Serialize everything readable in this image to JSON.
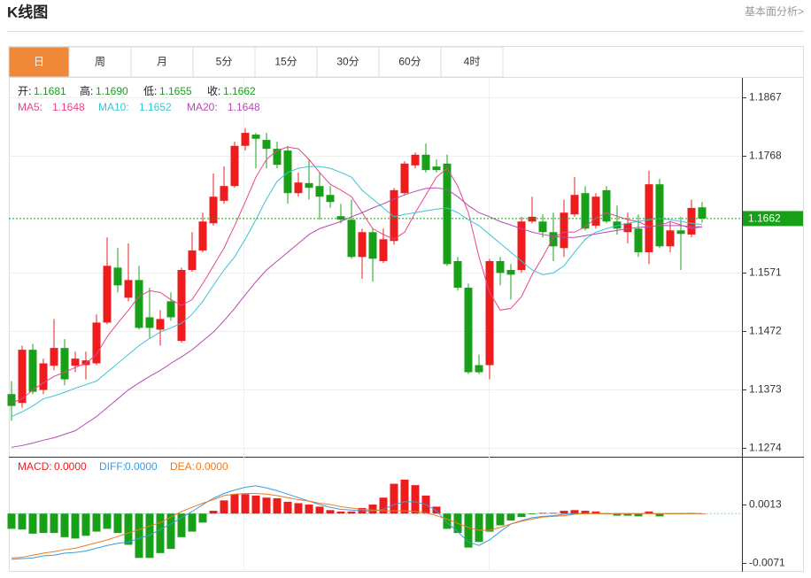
{
  "header": {
    "title": "K线图",
    "link": "基本面分析>"
  },
  "tabs": {
    "items": [
      "日",
      "周",
      "月",
      "5分",
      "15分",
      "30分",
      "60分",
      "4时"
    ],
    "active": 0
  },
  "chart_data": [
    {
      "type": "candlestick",
      "up_color": "#ee1c1c",
      "down_color": "#18a118",
      "ylim": [
        1.1259,
        1.19
      ],
      "yticks": [
        1.1274,
        1.1373,
        1.1472,
        1.1571,
        1.1768,
        1.1867
      ],
      "grid": true,
      "last_price": 1.1662,
      "last_price_color": "#18a118",
      "ohlc_legend": [
        {
          "label": "开:",
          "value": 1.1681
        },
        {
          "label": "高:",
          "value": 1.169,
          "value_label": "1.1690"
        },
        {
          "label": "低:",
          "value": 1.1655
        },
        {
          "label": "收:",
          "value": 1.1662
        }
      ],
      "open": [
        1.1365,
        1.135,
        1.144,
        1.1372,
        1.1413,
        1.1443,
        1.1413,
        1.1414,
        1.1417,
        1.1486,
        1.1579,
        1.1528,
        1.1558,
        1.1495,
        1.1474,
        1.1522,
        1.1455,
        1.1575,
        1.1608,
        1.1654,
        1.1692,
        1.1717,
        1.1785,
        1.1804,
        1.1795,
        1.178,
        1.1777,
        1.1705,
        1.1722,
        1.1717,
        1.1702,
        1.1666,
        1.166,
        1.1597,
        1.1639,
        1.159,
        1.1624,
        1.1705,
        1.1752,
        1.177,
        1.175,
        1.1755,
        1.159,
        1.1545,
        1.1414,
        1.1414,
        1.159,
        1.1575,
        1.1575,
        1.1657,
        1.1657,
        1.1639,
        1.1612,
        1.1669,
        1.1705,
        1.165,
        1.171,
        1.1657,
        1.1639,
        1.1645,
        1.1605,
        1.172,
        1.1615,
        1.1642,
        1.1635,
        1.1681
      ],
      "high": [
        1.1387,
        1.1447,
        1.145,
        1.1425,
        1.1492,
        1.1458,
        1.1437,
        1.1437,
        1.15,
        1.163,
        1.1612,
        1.162,
        1.1582,
        1.1545,
        1.1507,
        1.1537,
        1.1579,
        1.1639,
        1.1672,
        1.1738,
        1.175,
        1.1792,
        1.1815,
        1.1807,
        1.1807,
        1.1792,
        1.1785,
        1.174,
        1.1762,
        1.174,
        1.1717,
        1.1687,
        1.1694,
        1.1645,
        1.1645,
        1.1645,
        1.1714,
        1.1759,
        1.1774,
        1.1789,
        1.1762,
        1.177,
        1.1597,
        1.1552,
        1.1432,
        1.1594,
        1.1597,
        1.1585,
        1.1665,
        1.1699,
        1.1669,
        1.1672,
        1.1694,
        1.1732,
        1.1717,
        1.1705,
        1.1717,
        1.1684,
        1.1672,
        1.1669,
        1.1743,
        1.1729,
        1.1657,
        1.1665,
        1.1694,
        1.169
      ],
      "low": [
        1.132,
        1.1342,
        1.1365,
        1.1365,
        1.1405,
        1.138,
        1.1402,
        1.139,
        1.1414,
        1.1483,
        1.1537,
        1.1522,
        1.1474,
        1.1459,
        1.1447,
        1.1489,
        1.1452,
        1.1572,
        1.1605,
        1.165,
        1.1687,
        1.1714,
        1.1777,
        1.1747,
        1.1747,
        1.1747,
        1.1687,
        1.1699,
        1.1694,
        1.166,
        1.168,
        1.1654,
        1.1594,
        1.156,
        1.1555,
        1.1587,
        1.1618,
        1.1702,
        1.1747,
        1.174,
        1.174,
        1.1582,
        1.154,
        1.1399,
        1.1399,
        1.139,
        1.1549,
        1.1525,
        1.157,
        1.1654,
        1.163,
        1.159,
        1.1597,
        1.1665,
        1.1642,
        1.1645,
        1.1654,
        1.1635,
        1.162,
        1.1597,
        1.1585,
        1.1612,
        1.1605,
        1.1575,
        1.163,
        1.1655
      ],
      "close": [
        1.1345,
        1.144,
        1.1369,
        1.1417,
        1.1443,
        1.139,
        1.1425,
        1.1422,
        1.1486,
        1.1582,
        1.1549,
        1.1558,
        1.1477,
        1.1477,
        1.1492,
        1.1495,
        1.1575,
        1.1608,
        1.1657,
        1.1699,
        1.1717,
        1.1785,
        1.1807,
        1.1797,
        1.178,
        1.1753,
        1.1705,
        1.1723,
        1.1714,
        1.1699,
        1.169,
        1.166,
        1.1597,
        1.1639,
        1.1594,
        1.1627,
        1.171,
        1.1755,
        1.177,
        1.1744,
        1.1744,
        1.1585,
        1.1545,
        1.1402,
        1.1402,
        1.159,
        1.157,
        1.1567,
        1.1657,
        1.1665,
        1.1639,
        1.1615,
        1.1672,
        1.1702,
        1.1645,
        1.1699,
        1.1657,
        1.1645,
        1.1654,
        1.1605,
        1.172,
        1.1615,
        1.1642,
        1.1636,
        1.168,
        1.1662
      ],
      "series": [
        {
          "name": "MA5:",
          "color": "#e8458b",
          "values": [
            1.135,
            1.1357,
            1.1372,
            1.1384,
            1.1395,
            1.1402,
            1.141,
            1.1417,
            1.1432,
            1.1462,
            1.1485,
            1.1507,
            1.153,
            1.154,
            1.1537,
            1.1525,
            1.1515,
            1.1525,
            1.1552,
            1.1582,
            1.1612,
            1.165,
            1.169,
            1.1732,
            1.1762,
            1.1777,
            1.1783,
            1.178,
            1.1762,
            1.174,
            1.172,
            1.171,
            1.1699,
            1.1672,
            1.1645,
            1.1635,
            1.1627,
            1.1639,
            1.1672,
            1.1702,
            1.1732,
            1.1747,
            1.1717,
            1.1672,
            1.1597,
            1.1537,
            1.1507,
            1.151,
            1.153,
            1.1567,
            1.1597,
            1.163,
            1.1639,
            1.1639,
            1.1648,
            1.1663,
            1.1672,
            1.1666,
            1.166,
            1.1657,
            1.1648,
            1.165,
            1.1657,
            1.1651,
            1.1645,
            1.1648
          ]
        },
        {
          "name": "MA10:",
          "color": "#3cc3d6",
          "values": [
            1.1327,
            1.1335,
            1.1345,
            1.1357,
            1.1362,
            1.1368,
            1.1375,
            1.1381,
            1.1387,
            1.1402,
            1.1417,
            1.1432,
            1.1447,
            1.1459,
            1.147,
            1.1477,
            1.1485,
            1.15,
            1.1522,
            1.1549,
            1.1575,
            1.1597,
            1.1627,
            1.166,
            1.1695,
            1.1725,
            1.174,
            1.1747,
            1.175,
            1.175,
            1.1747,
            1.174,
            1.1732,
            1.171,
            1.1695,
            1.168,
            1.1665,
            1.1669,
            1.1672,
            1.1675,
            1.1678,
            1.168,
            1.1672,
            1.166,
            1.165,
            1.1635,
            1.162,
            1.1605,
            1.159,
            1.1575,
            1.1567,
            1.157,
            1.1582,
            1.1605,
            1.1627,
            1.1639,
            1.1645,
            1.165,
            1.1654,
            1.1657,
            1.166,
            1.1662,
            1.166,
            1.1657,
            1.1654,
            1.1652
          ]
        },
        {
          "name": "MA20:",
          "color": "#b44cb4",
          "values": [
            1.1275,
            1.1278,
            1.1282,
            1.1287,
            1.1291,
            1.1297,
            1.1303,
            1.1315,
            1.1327,
            1.1342,
            1.1357,
            1.1372,
            1.1384,
            1.1395,
            1.1405,
            1.1417,
            1.1428,
            1.144,
            1.1455,
            1.147,
            1.1489,
            1.151,
            1.1533,
            1.1555,
            1.1575,
            1.159,
            1.1605,
            1.162,
            1.1635,
            1.1645,
            1.1651,
            1.1657,
            1.1665,
            1.1672,
            1.168,
            1.1687,
            1.1695,
            1.1702,
            1.1708,
            1.1713,
            1.1714,
            1.1711,
            1.1699,
            1.1684,
            1.1672,
            1.1665,
            1.1657,
            1.1651,
            1.1645,
            1.1639,
            1.1635,
            1.1632,
            1.163,
            1.163,
            1.1633,
            1.1636,
            1.1639,
            1.1642,
            1.1645,
            1.1647,
            1.1648,
            1.165,
            1.165,
            1.165,
            1.1648,
            1.1648
          ]
        }
      ]
    },
    {
      "type": "macd",
      "ylim": [
        -0.0084,
        0.0082
      ],
      "yticks": [
        0.0013,
        -0.0071
      ],
      "up_color": "#ee1c1c",
      "down_color": "#18a118",
      "legend": [
        {
          "label": "MACD:",
          "value": 0,
          "value_label": "0.0000",
          "color": "#ee1c1c"
        },
        {
          "label": "DIFF:",
          "value": 0,
          "value_label": "0.0000",
          "color": "#3b9be0"
        },
        {
          "label": "DEA:",
          "value": 0,
          "value_label": "0.0000",
          "color": "#f07a1b"
        }
      ],
      "histogram": [
        -0.0022,
        -0.0023,
        -0.0029,
        -0.0028,
        -0.0028,
        -0.0034,
        -0.0036,
        -0.0032,
        -0.0026,
        -0.0022,
        -0.0028,
        -0.0045,
        -0.0064,
        -0.0064,
        -0.0057,
        -0.0051,
        -0.0034,
        -0.0026,
        -0.0013,
        0.0004,
        0.0019,
        0.0028,
        0.0028,
        0.0026,
        0.0023,
        0.0022,
        0.0017,
        0.0015,
        0.0013,
        0.001,
        0.0005,
        0.0003,
        0.0003,
        0.0008,
        0.0013,
        0.0023,
        0.0043,
        0.0049,
        0.0041,
        0.0026,
        0.001,
        -0.0022,
        -0.0028,
        -0.0049,
        -0.0041,
        -0.0026,
        -0.0017,
        -0.001,
        -0.0005,
        -0.0001,
        0.0001,
        0.0001,
        0.0004,
        0.0005,
        0.0004,
        0.0003,
        -0.0001,
        -0.0003,
        -0.0003,
        -0.0004,
        0.0003,
        -0.0004,
        -0.0001,
        -0.0001,
        0.0001,
        0
      ],
      "series": [
        {
          "color": "#3b9be0",
          "values": [
            -0.0066,
            -0.0065,
            -0.0064,
            -0.0061,
            -0.006,
            -0.0057,
            -0.0056,
            -0.0054,
            -0.005,
            -0.0046,
            -0.0043,
            -0.0041,
            -0.0036,
            -0.0031,
            -0.0023,
            -0.0015,
            -0.0006,
            0.0003,
            0.0013,
            0.0022,
            0.0029,
            0.0034,
            0.0038,
            0.004,
            0.0037,
            0.0033,
            0.0028,
            0.0023,
            0.0018,
            0.0013,
            0.0009,
            0.0006,
            0.0005,
            0.0004,
            0.0004,
            0.0006,
            0.0013,
            0.0017,
            0.0017,
            0.0013,
            0.0004,
            -0.0013,
            -0.0026,
            -0.0041,
            -0.0046,
            -0.0038,
            -0.0026,
            -0.0015,
            -0.001,
            -0.0006,
            -0.0004,
            -0.0003,
            -0.0001,
            0,
            0,
            0,
            0,
            0,
            0,
            0,
            0,
            0,
            0,
            0,
            0,
            0
          ]
        },
        {
          "color": "#f07a1b",
          "values": [
            -0.0064,
            -0.0063,
            -0.006,
            -0.0057,
            -0.0055,
            -0.0052,
            -0.005,
            -0.0046,
            -0.0042,
            -0.0038,
            -0.0033,
            -0.0028,
            -0.0023,
            -0.0018,
            -0.0013,
            -0.0005,
            0.0003,
            0.0009,
            0.0015,
            0.002,
            0.0026,
            0.0028,
            0.0029,
            0.0029,
            0.0028,
            0.0026,
            0.0023,
            0.002,
            0.0018,
            0.0015,
            0.0013,
            0.001,
            0.0008,
            0.0006,
            0.0005,
            0.0004,
            0.0004,
            0.0004,
            0.0003,
            0.0001,
            -0.0003,
            -0.0008,
            -0.0014,
            -0.002,
            -0.0024,
            -0.0024,
            -0.002,
            -0.0015,
            -0.0011,
            -0.0008,
            -0.0005,
            -0.0004,
            -0.0003,
            -0.0001,
            0,
            0,
            0,
            0,
            0,
            0,
            0,
            0,
            0,
            0,
            0,
            0
          ]
        }
      ]
    }
  ]
}
